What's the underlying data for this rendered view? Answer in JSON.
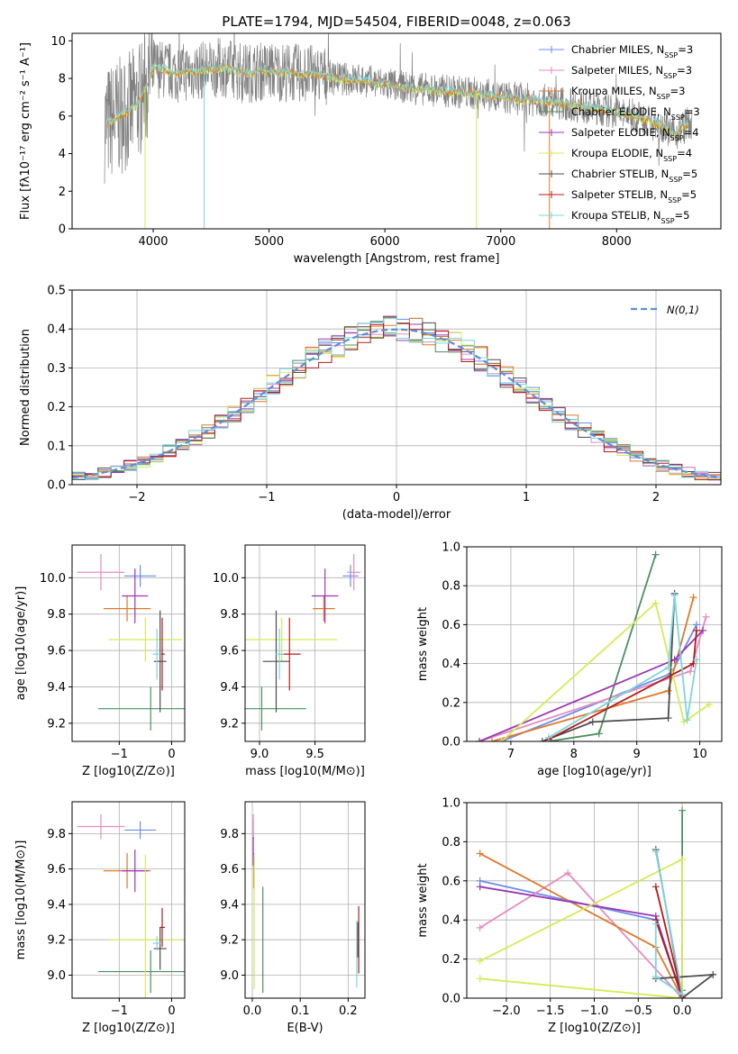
{
  "title": "PLATE=1794, MJD=54504, FIBERID=0048, z=0.063",
  "colors": {
    "Chabrier MILES": "#6a8ee8",
    "Salpeter MILES": "#e58bc0",
    "Kroupa MILES": "#e0792a",
    "Chabrier ELODIE": "#4a9060",
    "Salpeter ELODIE": "#9a37b7",
    "Kroupa ELODIE": "#d4ec55",
    "Chabrier STELIB": "#4d4d4d",
    "Salpeter STELIB": "#b31c1c",
    "Kroupa STELIB": "#7fd4de",
    "data": "#808080",
    "normal": "#5a8fd8"
  },
  "chart_data": [
    {
      "name": "spectrum",
      "type": "line",
      "xlabel": "wavelength [Angstrom, rest frame]",
      "ylabel": "Flux [fλ10⁻¹⁷ erg cm⁻² s⁻¹ A⁻¹]",
      "xlim": [
        3300,
        8900
      ],
      "ylim": [
        0,
        10.4
      ],
      "xticks": [
        4000,
        5000,
        6000,
        7000,
        8000
      ],
      "yticks": [
        0,
        2,
        4,
        6,
        8,
        10
      ],
      "continuum": [
        [
          3600,
          5.6
        ],
        [
          3800,
          6.3
        ],
        [
          3900,
          7.0
        ],
        [
          4000,
          8.6
        ],
        [
          4200,
          8.3
        ],
        [
          4400,
          8.4
        ],
        [
          4600,
          8.6
        ],
        [
          4800,
          8.3
        ],
        [
          5000,
          8.4
        ],
        [
          5200,
          8.3
        ],
        [
          5400,
          8.2
        ],
        [
          5600,
          8.0
        ],
        [
          5800,
          7.9
        ],
        [
          6000,
          7.7
        ],
        [
          6200,
          7.5
        ],
        [
          6400,
          7.4
        ],
        [
          6600,
          7.3
        ],
        [
          6800,
          7.2
        ],
        [
          7000,
          7.0
        ],
        [
          7200,
          6.9
        ],
        [
          7400,
          6.8
        ],
        [
          7600,
          6.6
        ],
        [
          7800,
          6.4
        ],
        [
          8000,
          6.2
        ],
        [
          8200,
          5.9
        ],
        [
          8400,
          5.5
        ],
        [
          8500,
          5.0
        ],
        [
          8600,
          5.6
        ]
      ],
      "legend": [
        "Chabrier MILES, N_SSP=3",
        "Salpeter MILES, N_SSP=3",
        "Kroupa MILES, N_SSP=3",
        "Chabrier ELODIE, N_SSP=3",
        "Salpeter ELODIE, N_SSP=4",
        "Kroupa ELODIE, N_SSP=4",
        "Chabrier STELIB, N_SSP=5",
        "Salpeter STELIB, N_SSP=5",
        "Kroupa STELIB, N_SSP=5"
      ]
    },
    {
      "name": "residual-histogram",
      "type": "bar",
      "xlabel": "(data-model)/error",
      "ylabel": "Normed distribution",
      "xlim": [
        -2.5,
        2.5
      ],
      "ylim": [
        0,
        0.5
      ],
      "xticks": [
        -2,
        -1,
        0,
        1,
        2
      ],
      "yticks": [
        0.0,
        0.1,
        0.2,
        0.3,
        0.4,
        0.5
      ],
      "bin_width": 0.1,
      "legend": "N(0,1)"
    },
    {
      "name": "age-vs-Z",
      "type": "scatter",
      "xlabel": "Z [log10(Z/Z⊙)]",
      "ylabel": "age  [log10(age/yr)]",
      "xlim": [
        -1.9,
        0.25
      ],
      "ylim": [
        9.1,
        10.18
      ],
      "xticks": [
        -1,
        0
      ],
      "yticks": [
        9.2,
        9.4,
        9.6,
        9.8,
        10.0
      ],
      "points": [
        {
          "model": "Chabrier MILES",
          "x": -0.6,
          "y": 10.01,
          "xerr": 0.3,
          "yerr": 0.06
        },
        {
          "model": "Salpeter MILES",
          "x": -1.35,
          "y": 10.03,
          "xerr": 0.45,
          "yerr": 0.1
        },
        {
          "model": "Kroupa MILES",
          "x": -0.85,
          "y": 9.83,
          "xerr": 0.45,
          "yerr": 0.07
        },
        {
          "model": "Chabrier ELODIE",
          "x": -0.4,
          "y": 9.28,
          "xerr": 1.0,
          "yerr": 0.12
        },
        {
          "model": "Salpeter ELODIE",
          "x": -0.7,
          "y": 9.9,
          "xerr": 0.25,
          "yerr": 0.15
        },
        {
          "model": "Kroupa ELODIE",
          "x": -0.5,
          "y": 9.66,
          "xerr": 0.7,
          "yerr": 0.12
        },
        {
          "model": "Chabrier STELIB",
          "x": -0.22,
          "y": 9.54,
          "xerr": 0.12,
          "yerr": 0.28
        },
        {
          "model": "Salpeter STELIB",
          "x": -0.18,
          "y": 9.58,
          "xerr": 0.05,
          "yerr": 0.2
        },
        {
          "model": "Kroupa STELIB",
          "x": -0.28,
          "y": 9.58,
          "xerr": 0.08,
          "yerr": 0.14
        }
      ]
    },
    {
      "name": "age-vs-mass",
      "type": "scatter",
      "xlabel": "mass [log10(M/M⊙)]",
      "ylabel": "",
      "xlim": [
        8.87,
        9.95
      ],
      "ylim": [
        9.1,
        10.18
      ],
      "xticks": [
        9.0,
        9.5
      ],
      "yticks": [
        9.2,
        9.4,
        9.6,
        9.8,
        10.0
      ],
      "points": [
        {
          "model": "Chabrier MILES",
          "x": 9.82,
          "y": 10.01,
          "xerr": 0.07,
          "yerr": 0.06
        },
        {
          "model": "Salpeter MILES",
          "x": 9.85,
          "y": 10.03,
          "xerr": 0.06,
          "yerr": 0.1
        },
        {
          "model": "Kroupa MILES",
          "x": 9.58,
          "y": 9.83,
          "xerr": 0.1,
          "yerr": 0.07
        },
        {
          "model": "Chabrier ELODIE",
          "x": 9.02,
          "y": 9.28,
          "xerr": 0.4,
          "yerr": 0.12
        },
        {
          "model": "Salpeter ELODIE",
          "x": 9.59,
          "y": 9.9,
          "xerr": 0.12,
          "yerr": 0.15
        },
        {
          "model": "Kroupa ELODIE",
          "x": 9.2,
          "y": 9.66,
          "xerr": 0.5,
          "yerr": 0.12
        },
        {
          "model": "Chabrier STELIB",
          "x": 9.15,
          "y": 9.54,
          "xerr": 0.12,
          "yerr": 0.28
        },
        {
          "model": "Salpeter STELIB",
          "x": 9.27,
          "y": 9.58,
          "xerr": 0.1,
          "yerr": 0.2
        },
        {
          "model": "Kroupa STELIB",
          "x": 9.18,
          "y": 9.58,
          "xerr": 0.04,
          "yerr": 0.14
        }
      ]
    },
    {
      "name": "mass-vs-Z",
      "type": "scatter",
      "xlabel": "Z [log10(Z/Z⊙)]",
      "ylabel": "mass [log10(M/M⊙)]",
      "xlim": [
        -1.9,
        0.25
      ],
      "ylim": [
        8.87,
        9.98
      ],
      "xticks": [
        -1,
        0
      ],
      "yticks": [
        9.0,
        9.2,
        9.4,
        9.6,
        9.8
      ],
      "points": [
        {
          "model": "Chabrier MILES",
          "x": -0.6,
          "y": 9.82,
          "xerr": 0.3,
          "yerr": 0.05
        },
        {
          "model": "Salpeter MILES",
          "x": -1.35,
          "y": 9.84,
          "xerr": 0.45,
          "yerr": 0.07
        },
        {
          "model": "Kroupa MILES",
          "x": -0.85,
          "y": 9.59,
          "xerr": 0.45,
          "yerr": 0.1
        },
        {
          "model": "Chabrier ELODIE",
          "x": -0.4,
          "y": 9.02,
          "xerr": 1.0,
          "yerr": 0.12
        },
        {
          "model": "Salpeter ELODIE",
          "x": -0.7,
          "y": 9.59,
          "xerr": 0.25,
          "yerr": 0.12
        },
        {
          "model": "Kroupa ELODIE",
          "x": -0.5,
          "y": 9.2,
          "xerr": 0.7,
          "yerr": 0.48
        },
        {
          "model": "Chabrier STELIB",
          "x": -0.22,
          "y": 9.15,
          "xerr": 0.12,
          "yerr": 0.12
        },
        {
          "model": "Salpeter STELIB",
          "x": -0.18,
          "y": 9.27,
          "xerr": 0.05,
          "yerr": 0.11
        },
        {
          "model": "Kroupa STELIB",
          "x": -0.28,
          "y": 9.18,
          "xerr": 0.08,
          "yerr": 0.04
        }
      ]
    },
    {
      "name": "mass-vs-ebv",
      "type": "scatter",
      "xlabel": "E(B-V)",
      "ylabel": "",
      "xlim": [
        -0.015,
        0.235
      ],
      "ylim": [
        8.87,
        9.98
      ],
      "xticks": [
        0.0,
        0.1,
        0.2
      ],
      "yticks": [
        9.0,
        9.2,
        9.4,
        9.6,
        9.8
      ],
      "points": [
        {
          "model": "Chabrier MILES",
          "x": 0.002,
          "y": 9.82,
          "xerr": 0,
          "yerr": 0.05
        },
        {
          "model": "Salpeter MILES",
          "x": 0.002,
          "y": 9.84,
          "xerr": 0,
          "yerr": 0.07
        },
        {
          "model": "Kroupa MILES",
          "x": 0.003,
          "y": 9.59,
          "xerr": 0,
          "yerr": 0.1
        },
        {
          "model": "Chabrier ELODIE",
          "x": 0.022,
          "y": 9.2,
          "xerr": 0,
          "yerr": 0.3
        },
        {
          "model": "Salpeter ELODIE",
          "x": 0.002,
          "y": 9.7,
          "xerr": 0,
          "yerr": 0.08
        },
        {
          "model": "Kroupa ELODIE",
          "x": 0.004,
          "y": 9.3,
          "xerr": 0,
          "yerr": 0.38
        },
        {
          "model": "Chabrier STELIB",
          "x": 0.22,
          "y": 9.2,
          "xerr": 0,
          "yerr": 0.1
        },
        {
          "model": "Salpeter STELIB",
          "x": 0.222,
          "y": 9.2,
          "xerr": 0,
          "yerr": 0.19
        },
        {
          "model": "Kroupa STELIB",
          "x": 0.218,
          "y": 9.12,
          "xerr": 0,
          "yerr": 0.19
        }
      ]
    },
    {
      "name": "mass-weight-vs-age",
      "type": "line",
      "xlabel": "age  [log10(age/yr)]",
      "ylabel": "mass weight",
      "xlim": [
        6.3,
        10.35
      ],
      "ylim": [
        0,
        1.0
      ],
      "xticks": [
        7,
        8,
        9,
        10
      ],
      "yticks": [
        0.0,
        0.2,
        0.4,
        0.6,
        0.8,
        1.0
      ],
      "series": [
        {
          "name": "Chabrier MILES",
          "x": [
            6.85,
            9.55,
            9.95
          ],
          "y": [
            0.0,
            0.35,
            0.6
          ]
        },
        {
          "name": "Salpeter MILES",
          "x": [
            6.5,
            9.85,
            10.1
          ],
          "y": [
            0.0,
            0.36,
            0.64
          ]
        },
        {
          "name": "Kroupa MILES",
          "x": [
            6.7,
            9.5,
            9.9
          ],
          "y": [
            0.0,
            0.26,
            0.74
          ]
        },
        {
          "name": "Chabrier ELODIE",
          "x": [
            7.6,
            8.4,
            9.3
          ],
          "y": [
            0.0,
            0.04,
            0.96
          ]
        },
        {
          "name": "Salpeter ELODIE",
          "x": [
            6.5,
            9.6,
            10.05
          ],
          "y": [
            0.0,
            0.42,
            0.57
          ]
        },
        {
          "name": "Kroupa ELODIE",
          "x": [
            6.85,
            9.3,
            9.75,
            10.15
          ],
          "y": [
            0.0,
            0.71,
            0.1,
            0.19
          ]
        },
        {
          "name": "Chabrier STELIB",
          "x": [
            7.5,
            8.3,
            9.5,
            9.6
          ],
          "y": [
            0.0,
            0.1,
            0.12,
            0.76
          ]
        },
        {
          "name": "Salpeter STELIB",
          "x": [
            7.6,
            9.9,
            9.95
          ],
          "y": [
            0.01,
            0.4,
            0.57
          ]
        },
        {
          "name": "Kroupa STELIB",
          "x": [
            7.6,
            9.5,
            9.6,
            9.8,
            9.95
          ],
          "y": [
            0.02,
            0.38,
            0.75,
            0.11,
            0.42
          ]
        }
      ]
    },
    {
      "name": "mass-weight-vs-Z",
      "type": "line",
      "xlabel": "Z [log10(Z/Z⊙)]",
      "ylabel": "mass weight",
      "xlim": [
        -2.45,
        0.45
      ],
      "ylim": [
        0,
        1.0
      ],
      "xticks": [
        -2.0,
        -1.5,
        -1.0,
        -0.5,
        0.0
      ],
      "yticks": [
        0.0,
        0.2,
        0.4,
        0.6,
        0.8,
        1.0
      ],
      "series": [
        {
          "name": "Chabrier MILES",
          "x": [
            -2.3,
            -0.3,
            0.0
          ],
          "y": [
            0.6,
            0.4,
            0.0
          ]
        },
        {
          "name": "Salpeter MILES",
          "x": [
            -2.3,
            -1.3,
            0.0
          ],
          "y": [
            0.36,
            0.64,
            0.0
          ]
        },
        {
          "name": "Kroupa MILES",
          "x": [
            -2.3,
            -0.3,
            0.0
          ],
          "y": [
            0.74,
            0.26,
            0.0
          ]
        },
        {
          "name": "Chabrier ELODIE",
          "x": [
            0.0,
            0.0,
            0.0
          ],
          "y": [
            0.96,
            0.04,
            0.0
          ]
        },
        {
          "name": "Salpeter ELODIE",
          "x": [
            -2.3,
            -0.3,
            0.0
          ],
          "y": [
            0.57,
            0.42,
            0.0
          ]
        },
        {
          "name": "Kroupa ELODIE",
          "x": [
            -2.3,
            0.0,
            0.0,
            -2.3
          ],
          "y": [
            0.1,
            0.0,
            0.71,
            0.19
          ]
        },
        {
          "name": "Chabrier STELIB",
          "x": [
            -0.3,
            0.0,
            0.35,
            -0.3
          ],
          "y": [
            0.76,
            0.0,
            0.12,
            0.1
          ]
        },
        {
          "name": "Salpeter STELIB",
          "x": [
            -0.3,
            0.0,
            -0.3
          ],
          "y": [
            0.4,
            0.01,
            0.57
          ]
        },
        {
          "name": "Kroupa STELIB",
          "x": [
            -0.3,
            0.0,
            -0.3,
            -0.3
          ],
          "y": [
            0.75,
            0.02,
            0.11,
            0.38
          ]
        }
      ]
    }
  ]
}
